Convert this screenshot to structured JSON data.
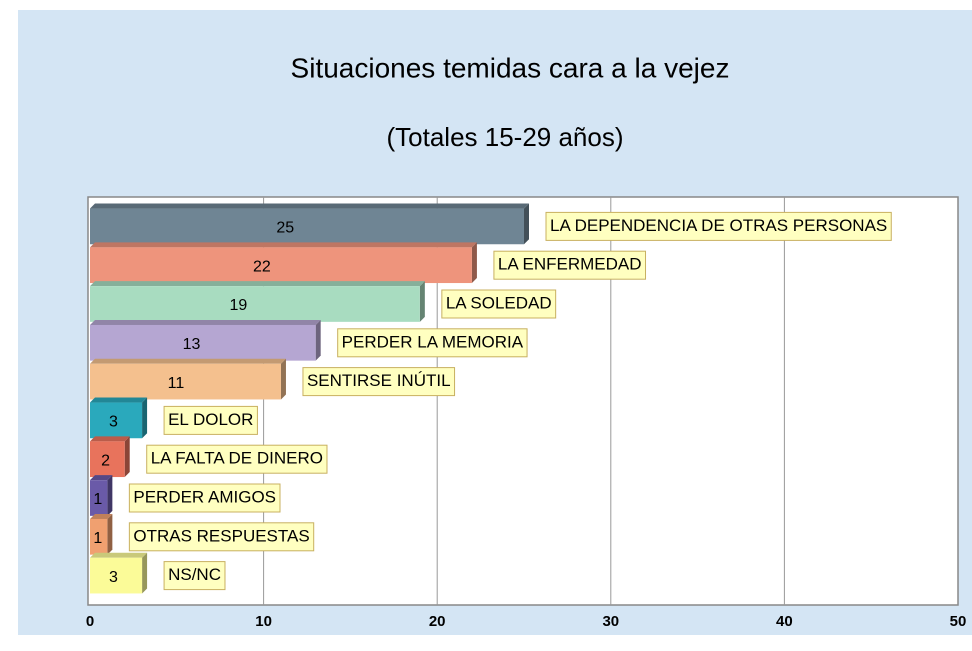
{
  "chart_data": {
    "type": "bar",
    "title": "Situaciones temidas cara a la vejez",
    "subtitle": "(Totales 15-29 años)",
    "categories": [
      "LA DEPENDENCIA DE OTRAS PERSONAS",
      "LA ENFERMEDAD",
      "LA SOLEDAD",
      "PERDER LA MEMORIA",
      "SENTIRSE INÚTIL",
      "EL DOLOR",
      "LA FALTA DE DINERO",
      "PERDER AMIGOS",
      "OTRAS RESPUESTAS",
      "NS/NC"
    ],
    "values": [
      25,
      22,
      19,
      13,
      11,
      3,
      2,
      1,
      1,
      3
    ],
    "colors": [
      "#6f8594",
      "#ee947c",
      "#a8dcc0",
      "#b5a6d2",
      "#f4c08e",
      "#2aa9bc",
      "#e8735c",
      "#6a5aa8",
      "#f0a070",
      "#fbfb98"
    ],
    "xlim": [
      0,
      50
    ],
    "xticks": [
      0,
      10,
      20,
      30,
      40,
      50
    ],
    "grid": true
  }
}
